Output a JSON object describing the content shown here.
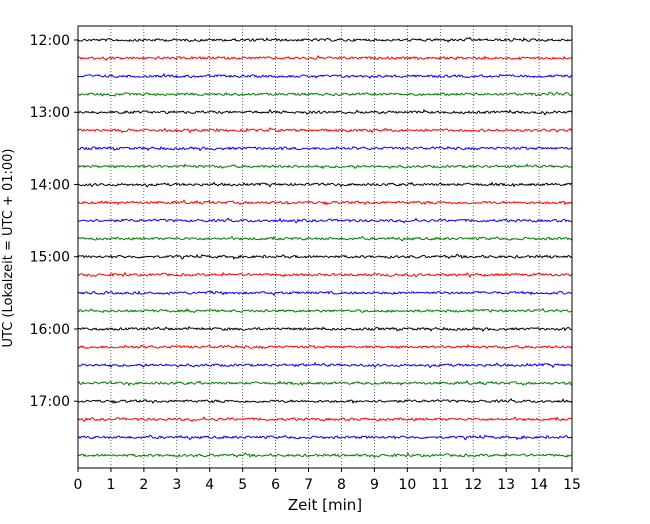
{
  "chart_data": {
    "type": "line",
    "title": "",
    "xlabel": "Zeit  [min]",
    "ylabel": "UTC (Lokalzeit = UTC + 01:00)",
    "xlim": [
      0,
      15
    ],
    "x_ticks": [
      "0",
      "1",
      "2",
      "3",
      "4",
      "5",
      "6",
      "7",
      "8",
      "9",
      "10",
      "11",
      "12",
      "13",
      "14",
      "15"
    ],
    "y_tick_labels": [
      "12:00",
      "13:00",
      "14:00",
      "15:00",
      "16:00",
      "17:00"
    ],
    "trace_start": "12:00",
    "trace_interval_minutes": 15,
    "trace_count": 24,
    "trace_colors": [
      "#000000",
      "#ff0000",
      "#0000ff",
      "#008000"
    ],
    "grid": "vertical dotted"
  }
}
